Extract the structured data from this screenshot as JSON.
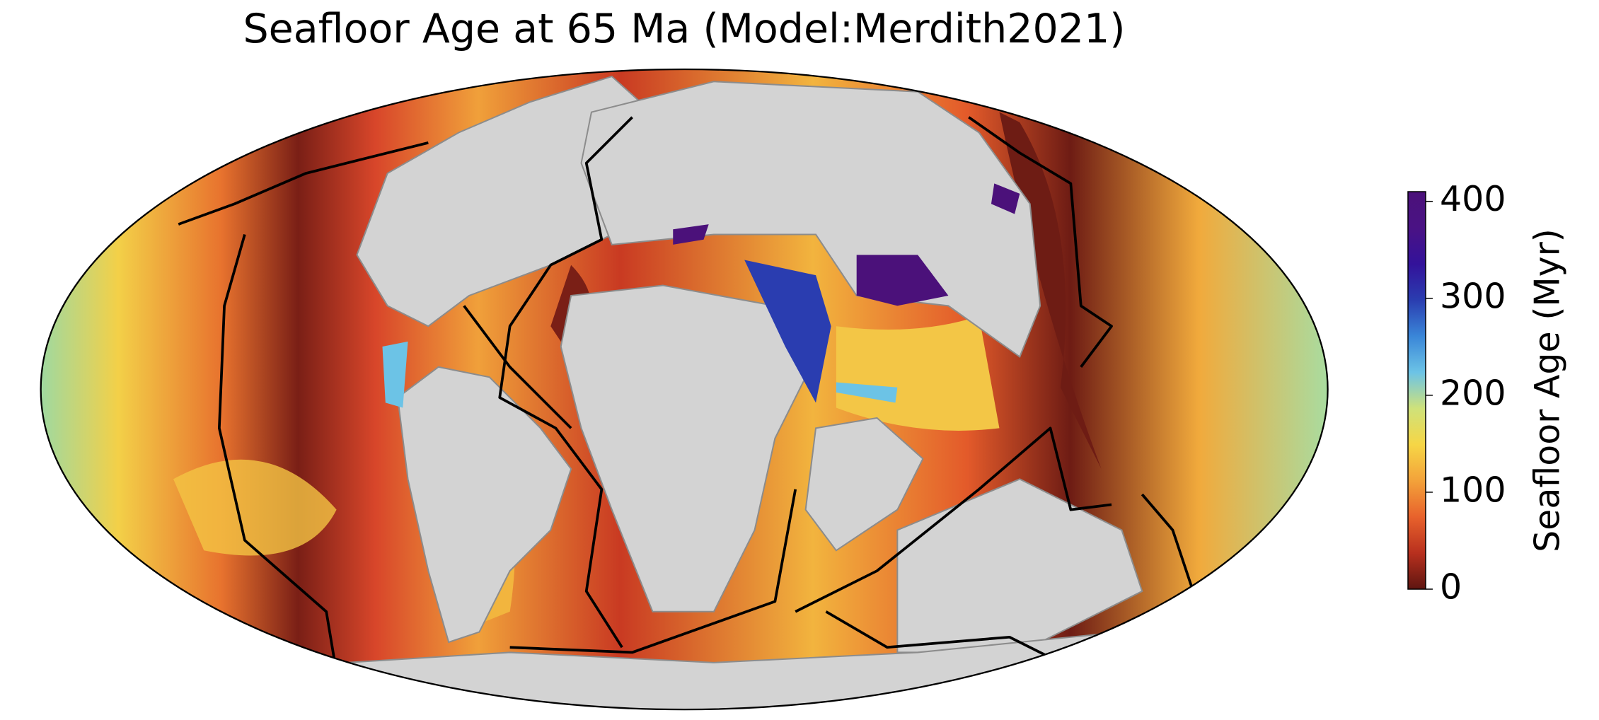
{
  "title": "Seafloor Age at 65 Ma (Model:Merdith2021)",
  "colorbar": {
    "label": "Seafloor Age (Myr)",
    "lim": [
      0,
      410
    ],
    "ticks": [
      0,
      100,
      200,
      300,
      400
    ],
    "colors": [
      "#5e1510",
      "#b8301e",
      "#e8622c",
      "#f3a23a",
      "#f6d646",
      "#cfe27a",
      "#6cc3e6",
      "#3a86d8",
      "#2a3db0",
      "#33129a",
      "#4a1284",
      "#4b117a"
    ]
  }
}
